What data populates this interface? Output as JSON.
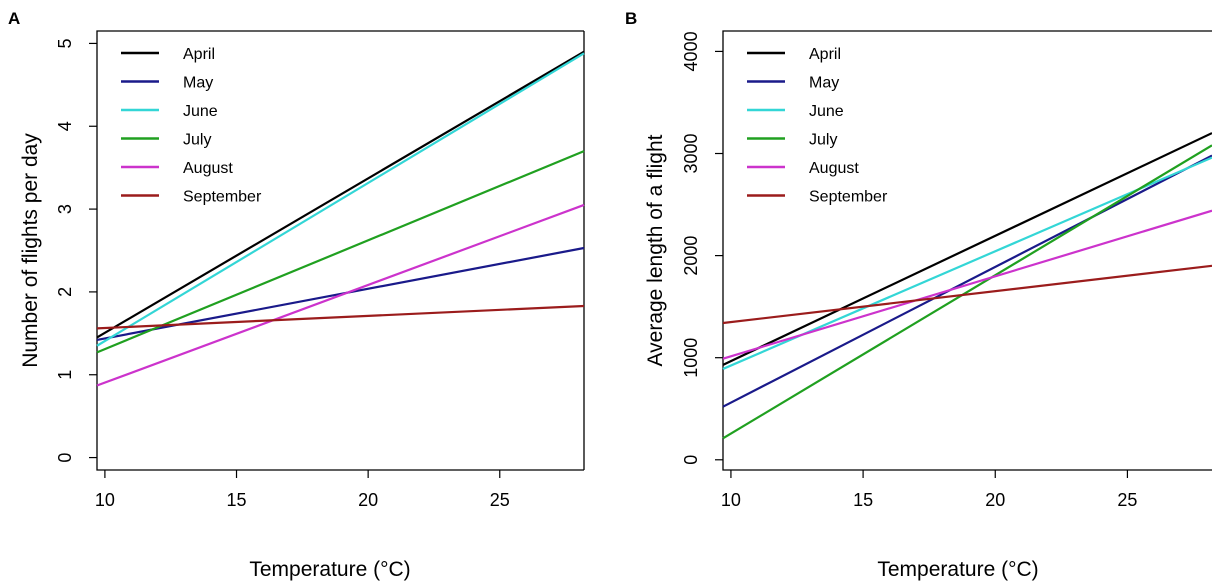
{
  "chart_data": [
    {
      "panel": "A",
      "type": "line",
      "xlabel": "Temperature (°C)",
      "ylabel": "Number of flights per day",
      "xlim": [
        9.7,
        28.2
      ],
      "ylim": [
        -0.15,
        5.15
      ],
      "xticks": [
        10,
        15,
        20,
        25
      ],
      "yticks": [
        0,
        1,
        2,
        3,
        4,
        5
      ],
      "legend": "top-left",
      "series": [
        {
          "name": "April",
          "color": "#000000",
          "x": [
            9.7,
            28.2
          ],
          "y": [
            1.45,
            4.9
          ]
        },
        {
          "name": "May",
          "color": "#1a1a8a",
          "x": [
            9.7,
            28.2
          ],
          "y": [
            1.42,
            2.53
          ]
        },
        {
          "name": "June",
          "color": "#33d6d6",
          "x": [
            9.7,
            28.2
          ],
          "y": [
            1.35,
            4.88
          ]
        },
        {
          "name": "July",
          "color": "#20a020",
          "x": [
            9.7,
            28.2
          ],
          "y": [
            1.27,
            3.7
          ]
        },
        {
          "name": "August",
          "color": "#cc33cc",
          "x": [
            9.7,
            28.2
          ],
          "y": [
            0.87,
            3.05
          ]
        },
        {
          "name": "September",
          "color": "#9b1c1c",
          "x": [
            9.7,
            28.2
          ],
          "y": [
            1.56,
            1.83
          ]
        }
      ]
    },
    {
      "panel": "B",
      "type": "line",
      "xlabel": "Temperature (°C)",
      "ylabel": "Average length of a flight",
      "xlim": [
        9.7,
        28.2
      ],
      "ylim": [
        -100,
        4200
      ],
      "xticks": [
        10,
        15,
        20,
        25
      ],
      "yticks": [
        0,
        1000,
        2000,
        3000,
        4000
      ],
      "legend": "top-left",
      "series": [
        {
          "name": "April",
          "color": "#000000",
          "x": [
            9.7,
            28.2
          ],
          "y": [
            930,
            3200
          ]
        },
        {
          "name": "May",
          "color": "#1a1a8a",
          "x": [
            9.7,
            28.2
          ],
          "y": [
            520,
            2980
          ]
        },
        {
          "name": "June",
          "color": "#33d6d6",
          "x": [
            9.7,
            28.2
          ],
          "y": [
            890,
            2960
          ]
        },
        {
          "name": "July",
          "color": "#20a020",
          "x": [
            9.7,
            28.2
          ],
          "y": [
            210,
            3080
          ]
        },
        {
          "name": "August",
          "color": "#cc33cc",
          "x": [
            9.7,
            28.2
          ],
          "y": [
            990,
            2440
          ]
        },
        {
          "name": "September",
          "color": "#9b1c1c",
          "x": [
            9.7,
            28.2
          ],
          "y": [
            1340,
            1900
          ]
        }
      ]
    }
  ]
}
